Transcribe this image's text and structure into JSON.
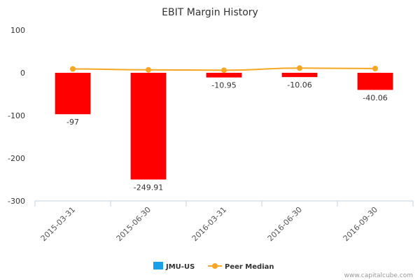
{
  "chart_data": {
    "type": "bar",
    "title": "EBIT Margin History",
    "categories": [
      "2015-03-31",
      "2015-06-30",
      "2016-03-31",
      "2016-06-30",
      "2016-09-30"
    ],
    "series": [
      {
        "name": "JMU-US",
        "type": "bar",
        "values": [
          -97,
          -249.91,
          -10.95,
          -10.06,
          -40.06
        ],
        "data_labels": [
          "-97",
          "-249.91",
          "-10.95",
          "-10.06",
          "-40.06"
        ],
        "bar_color": "#ff0000",
        "legend_color": "#1aa0e8"
      },
      {
        "name": "Peer Median",
        "type": "line",
        "values": [
          9,
          7,
          6,
          11,
          10
        ],
        "color": "#f5a623"
      }
    ],
    "yticks": [
      100,
      0,
      -100,
      -200,
      -300
    ],
    "ytick_labels": [
      "100",
      "0",
      "-100",
      "-200",
      "-300"
    ],
    "ylim": [
      -300,
      100
    ],
    "legend_position": "bottom-center",
    "grid": false
  },
  "credit": "www.capitalcube.com"
}
